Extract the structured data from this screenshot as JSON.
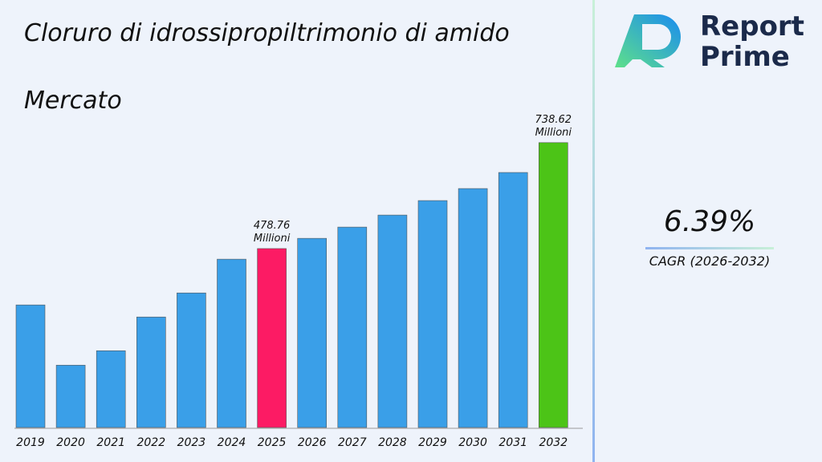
{
  "chart_data": {
    "type": "bar",
    "title": "Cloruro di idrossipropiltrimonio di amido Mercato",
    "categories": [
      "2019",
      "2020",
      "2021",
      "2022",
      "2023",
      "2024",
      "2025",
      "2026",
      "2027",
      "2028",
      "2029",
      "2030",
      "2031",
      "2032"
    ],
    "values": [
      340.6,
      192.9,
      228.3,
      311,
      370,
      452.8,
      478.76,
      503.9,
      531.5,
      561,
      596.5,
      626,
      665.4,
      738.62
    ],
    "value_labels": [
      null,
      null,
      null,
      null,
      null,
      null,
      "478.76 Millioni",
      null,
      null,
      null,
      null,
      null,
      null,
      "738.62 Millioni"
    ],
    "colors": [
      "#3a9fe8",
      "#3a9fe8",
      "#3a9fe8",
      "#3a9fe8",
      "#3a9fe8",
      "#3a9fe8",
      "#fc1b64",
      "#3a9fe8",
      "#3a9fe8",
      "#3a9fe8",
      "#3a9fe8",
      "#3a9fe8",
      "#3a9fe8",
      "#4cc417"
    ],
    "ylim": [
      40,
      813
    ]
  },
  "brand": {
    "line1": "Report",
    "line2": "Prime"
  },
  "cagr": {
    "value": "6.39%",
    "label": "CAGR (2026-2032)"
  }
}
